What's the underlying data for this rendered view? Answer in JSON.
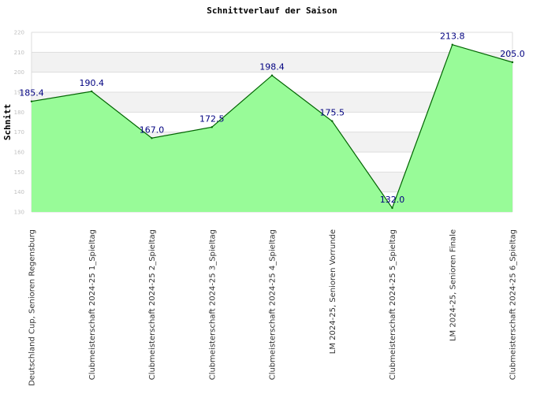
{
  "chart_data": {
    "type": "area",
    "title": "Schnittverlauf der Saison",
    "xlabel": "",
    "ylabel": "Schnitt",
    "ylim": [
      130,
      220
    ],
    "yticks": [
      130,
      140,
      150,
      160,
      170,
      180,
      190,
      200,
      210,
      220
    ],
    "grid": true,
    "categories": [
      "Deutschland Cup, Senioren Regensburg",
      "Clubmeisterschaft 2024-25   1_Spieltag",
      "Clubmeisterschaft 2024-25   2_Spieltag",
      "Clubmeisterschaft 2024-25   3_Spieltag",
      "Clubmeisterschaft 2024-25   4_Spieltag",
      "LM 2024-25, Senioren Vorrunde",
      "Clubmeisterschaft 2024-25   5_Spieltag",
      "LM 2024-25, Senioren Finale",
      "Clubmeisterschaft 2024-25   6_Spieltag"
    ],
    "values": [
      185.4,
      190.4,
      167.0,
      172.5,
      198.4,
      175.5,
      132.0,
      213.8,
      205.0
    ],
    "data_labels": [
      "185.4",
      "190.4",
      "167.0",
      "172.5",
      "198.4",
      "175.5",
      "132.0",
      "213.8",
      "205.0"
    ],
    "colors": {
      "fill": "#98fb98",
      "line": "#006400",
      "band": "#f2f2f2",
      "grid": "#dddddd",
      "data_label": "#000080"
    }
  }
}
